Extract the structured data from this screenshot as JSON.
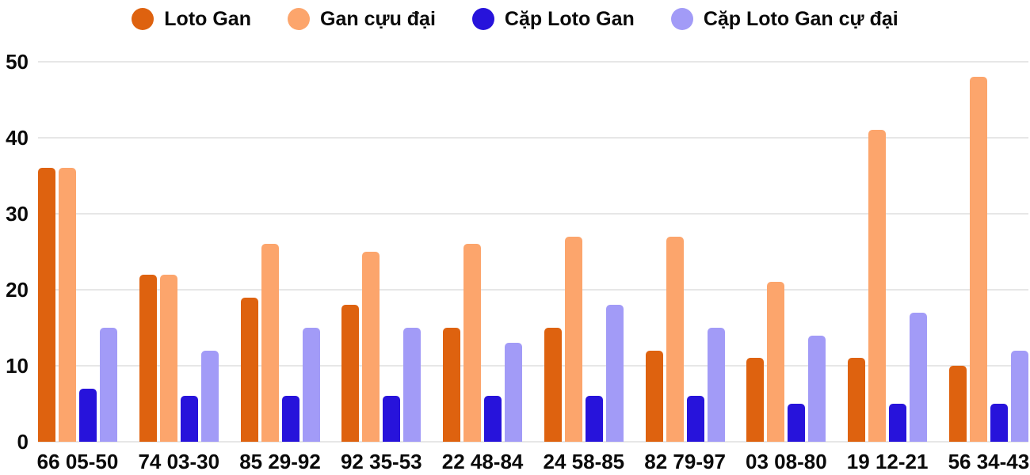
{
  "colors": {
    "background": "#ffffff",
    "grid": "#e7e7e7",
    "text": "#0a0a0a"
  },
  "chart_data": {
    "type": "bar",
    "title": "",
    "xlabel": "",
    "ylabel": "",
    "ylim": [
      0,
      50
    ],
    "yticks": [
      0,
      10,
      20,
      30,
      40,
      50
    ],
    "grid": true,
    "legend_position": "top",
    "categories": [
      "66 05-50",
      "74 03-30",
      "85 29-92",
      "92 35-53",
      "22 48-84",
      "24 58-85",
      "82 79-97",
      "03 08-80",
      "19 12-21",
      "56 34-43"
    ],
    "series": [
      {
        "name": "Loto Gan",
        "color": "#de620f",
        "values": [
          36,
          22,
          19,
          18,
          15,
          15,
          12,
          11,
          11,
          10
        ]
      },
      {
        "name": "Gan cựu đại",
        "color": "#fca56c",
        "values": [
          36,
          22,
          26,
          25,
          26,
          27,
          27,
          21,
          41,
          48
        ]
      },
      {
        "name": "Cặp Loto Gan",
        "color": "#2713db",
        "values": [
          7,
          6,
          6,
          6,
          6,
          6,
          6,
          5,
          5,
          5
        ]
      },
      {
        "name": "Cặp Loto Gan cự đại",
        "color": "#a29bf7",
        "values": [
          15,
          12,
          15,
          15,
          13,
          18,
          15,
          14,
          17,
          12
        ]
      }
    ]
  }
}
